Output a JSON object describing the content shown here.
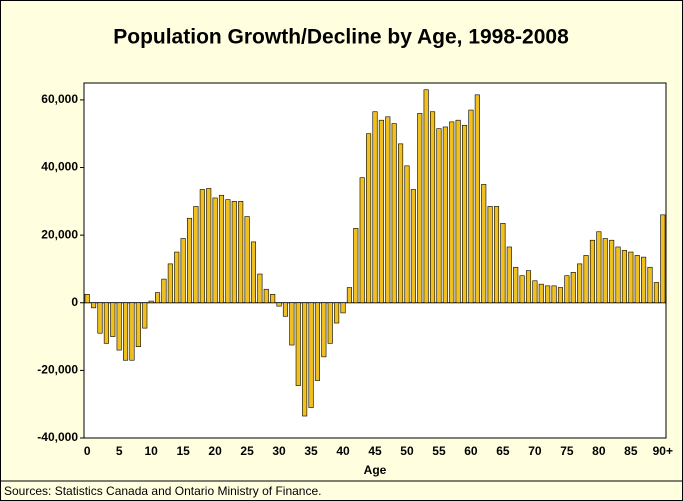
{
  "chart_data": {
    "type": "bar",
    "title": "Population Growth/Decline by Age, 1998-2008",
    "x_label": "Age",
    "source": "Sources: Statistics Canada and Ontario Ministry of Finance.",
    "categories": [
      "0",
      null,
      null,
      null,
      null,
      "5",
      null,
      null,
      null,
      null,
      "10",
      null,
      null,
      null,
      null,
      "15",
      null,
      null,
      null,
      null,
      "20",
      null,
      null,
      null,
      null,
      "25",
      null,
      null,
      null,
      null,
      "30",
      null,
      null,
      null,
      null,
      "35",
      null,
      null,
      null,
      null,
      "40",
      null,
      null,
      null,
      null,
      "45",
      null,
      null,
      null,
      null,
      "50",
      null,
      null,
      null,
      null,
      "55",
      null,
      null,
      null,
      null,
      "60",
      null,
      null,
      null,
      null,
      "65",
      null,
      null,
      null,
      null,
      "70",
      null,
      null,
      null,
      null,
      "75",
      null,
      null,
      null,
      null,
      "80",
      null,
      null,
      null,
      null,
      "85",
      null,
      null,
      null,
      null,
      "90+"
    ],
    "values": [
      2500,
      -1500,
      -9000,
      -12000,
      -10000,
      -14000,
      -17000,
      -17000,
      -13000,
      -7500,
      500,
      3000,
      7000,
      11500,
      15000,
      19000,
      25000,
      28500,
      33500,
      33800,
      31000,
      31800,
      30500,
      30000,
      30000,
      25500,
      18000,
      8500,
      4000,
      2500,
      -1000,
      -4000,
      -12500,
      -24500,
      -33500,
      -31000,
      -23000,
      -16000,
      -12000,
      -6000,
      -3000,
      4500,
      22000,
      37000,
      50000,
      56500,
      54000,
      55000,
      53000,
      47000,
      40500,
      33500,
      56000,
      63000,
      56500,
      51500,
      52000,
      53500,
      54000,
      52500,
      57000,
      61500,
      35000,
      28500,
      28500,
      23500,
      16500,
      10500,
      8000,
      9500,
      6500,
      5500,
      5000,
      5000,
      4500,
      8000,
      9000,
      11500,
      14000,
      18500,
      21000,
      19000,
      18500,
      16500,
      15500,
      15000,
      14000,
      13500,
      10500,
      6000,
      26000
    ],
    "color": "#f0c020",
    "ylim": [
      -40000,
      65000
    ],
    "yticks": [
      {
        "value": -40000,
        "label": "-40,000"
      },
      {
        "value": -20000,
        "label": "-20,000"
      },
      0,
      {
        "value": 20000,
        "label": "20,000"
      },
      {
        "value": 40000,
        "label": "40,000"
      },
      {
        "value": 60000,
        "label": "60,000"
      }
    ]
  }
}
